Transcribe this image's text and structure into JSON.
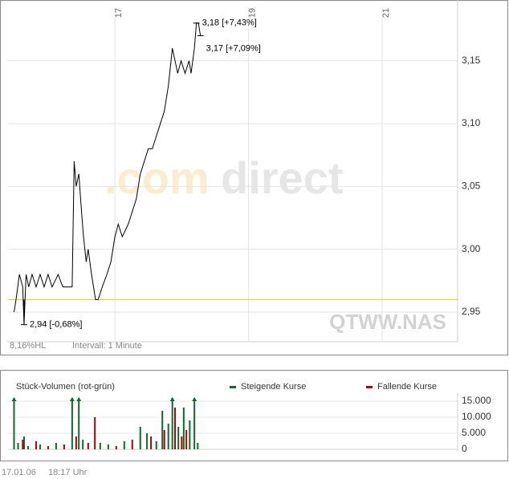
{
  "chart_data": [
    {
      "type": "line",
      "symbol": "QTWW.NAS",
      "hl_range": "8,16%HL",
      "interval": "Intervall: 1 Minute",
      "watermark": [
        ".com",
        "direct"
      ],
      "x": [
        15.49,
        15.52,
        15.57,
        15.62,
        15.64,
        15.67,
        15.71,
        15.76,
        15.82,
        15.88,
        15.94,
        16.0,
        16.06,
        16.15,
        16.22,
        16.3,
        16.36,
        16.39,
        16.42,
        16.46,
        16.5,
        16.53,
        16.57,
        16.6,
        16.65,
        16.71,
        16.75,
        16.81,
        16.88,
        16.94,
        17.0,
        17.05,
        17.11,
        17.2,
        17.26,
        17.32,
        17.38,
        17.44,
        17.5,
        17.56,
        17.62,
        17.68,
        17.74,
        17.8,
        17.86,
        17.9,
        17.94,
        17.99,
        18.05,
        18.11,
        18.14,
        18.19,
        18.22,
        18.25,
        18.28
      ],
      "series": [
        {
          "color": "#000000",
          "values": [
            2.95,
            2.96,
            2.98,
            2.97,
            2.94,
            2.98,
            2.97,
            2.98,
            2.97,
            2.98,
            2.97,
            2.98,
            2.97,
            2.98,
            2.97,
            2.97,
            2.97,
            3.07,
            3.05,
            3.06,
            3.03,
            3.01,
            2.99,
            3.0,
            2.98,
            2.96,
            2.96,
            2.97,
            2.98,
            2.99,
            3.01,
            3.02,
            3.01,
            3.02,
            3.03,
            3.04,
            3.06,
            3.07,
            3.08,
            3.08,
            3.09,
            3.1,
            3.11,
            3.13,
            3.16,
            3.15,
            3.14,
            3.15,
            3.14,
            3.15,
            3.14,
            3.16,
            3.18,
            3.18,
            3.17
          ]
        }
      ],
      "reference_line": {
        "value": 2.96,
        "color": "#e0d000"
      },
      "annotations": [
        {
          "text": "3,18 [+7,43%]",
          "x": 18.22,
          "y": 3.18
        },
        {
          "text": "3,17 [+7,09%]",
          "x": 18.28,
          "y": 3.17
        },
        {
          "text": "2,94 [-0,68%]",
          "x": 15.64,
          "y": 2.94
        }
      ],
      "xlim": [
        15.4,
        22.13
      ],
      "xticks": [
        17,
        19,
        21
      ],
      "ylim": [
        2.927,
        3.192
      ],
      "yticks": [
        {
          "value": 2.95,
          "label": "2,95"
        },
        {
          "value": 3.0,
          "label": "3,00"
        },
        {
          "value": 3.05,
          "label": "3,05"
        },
        {
          "value": 3.1,
          "label": "3,10"
        },
        {
          "value": 3.15,
          "label": "3,15"
        }
      ],
      "grid": true
    },
    {
      "type": "bar",
      "title": "Stück-Volumen (rot-grün)",
      "x": [
        15.49,
        15.55,
        15.62,
        15.64,
        15.7,
        15.82,
        15.88,
        16.0,
        16.12,
        16.24,
        16.36,
        16.42,
        16.46,
        16.52,
        16.6,
        16.7,
        16.78,
        16.9,
        17.02,
        17.14,
        17.26,
        17.38,
        17.48,
        17.54,
        17.62,
        17.71,
        17.74,
        17.8,
        17.86,
        17.9,
        17.95,
        18.0,
        18.03,
        18.07,
        18.12,
        18.19,
        18.24
      ],
      "series": [
        {
          "name": "Steigende Kurse",
          "color": "#0a6b2a",
          "values": [
            16000,
            2000,
            null,
            4000,
            1000,
            null,
            1500,
            null,
            2000,
            null,
            16000,
            null,
            16000,
            3000,
            null,
            null,
            2000,
            1500,
            null,
            2500,
            null,
            7000,
            5000,
            null,
            2500,
            12000,
            null,
            8000,
            16000,
            null,
            7000,
            null,
            13000,
            null,
            9000,
            16000,
            2000
          ]
        },
        {
          "name": "Fallende Kurse",
          "color": "#b00000",
          "values": [
            null,
            null,
            3000,
            null,
            null,
            2500,
            null,
            1000,
            null,
            1500,
            null,
            4000,
            null,
            null,
            2000,
            10000,
            null,
            null,
            1000,
            null,
            3000,
            null,
            null,
            4000,
            null,
            null,
            6000,
            null,
            null,
            13000,
            null,
            4000,
            null,
            6000,
            null,
            null,
            null
          ]
        }
      ],
      "xlim": [
        15.4,
        22.13
      ],
      "ylim": [
        0,
        17000
      ],
      "yticks": [
        0,
        {
          "value": 5000,
          "label": "5.000"
        },
        {
          "value": 10000,
          "label": "10.000"
        },
        {
          "value": 15000,
          "label": "15.000"
        }
      ],
      "grid": true
    }
  ],
  "footer": {
    "date": "17.01.06",
    "time": "18:17 Uhr"
  }
}
